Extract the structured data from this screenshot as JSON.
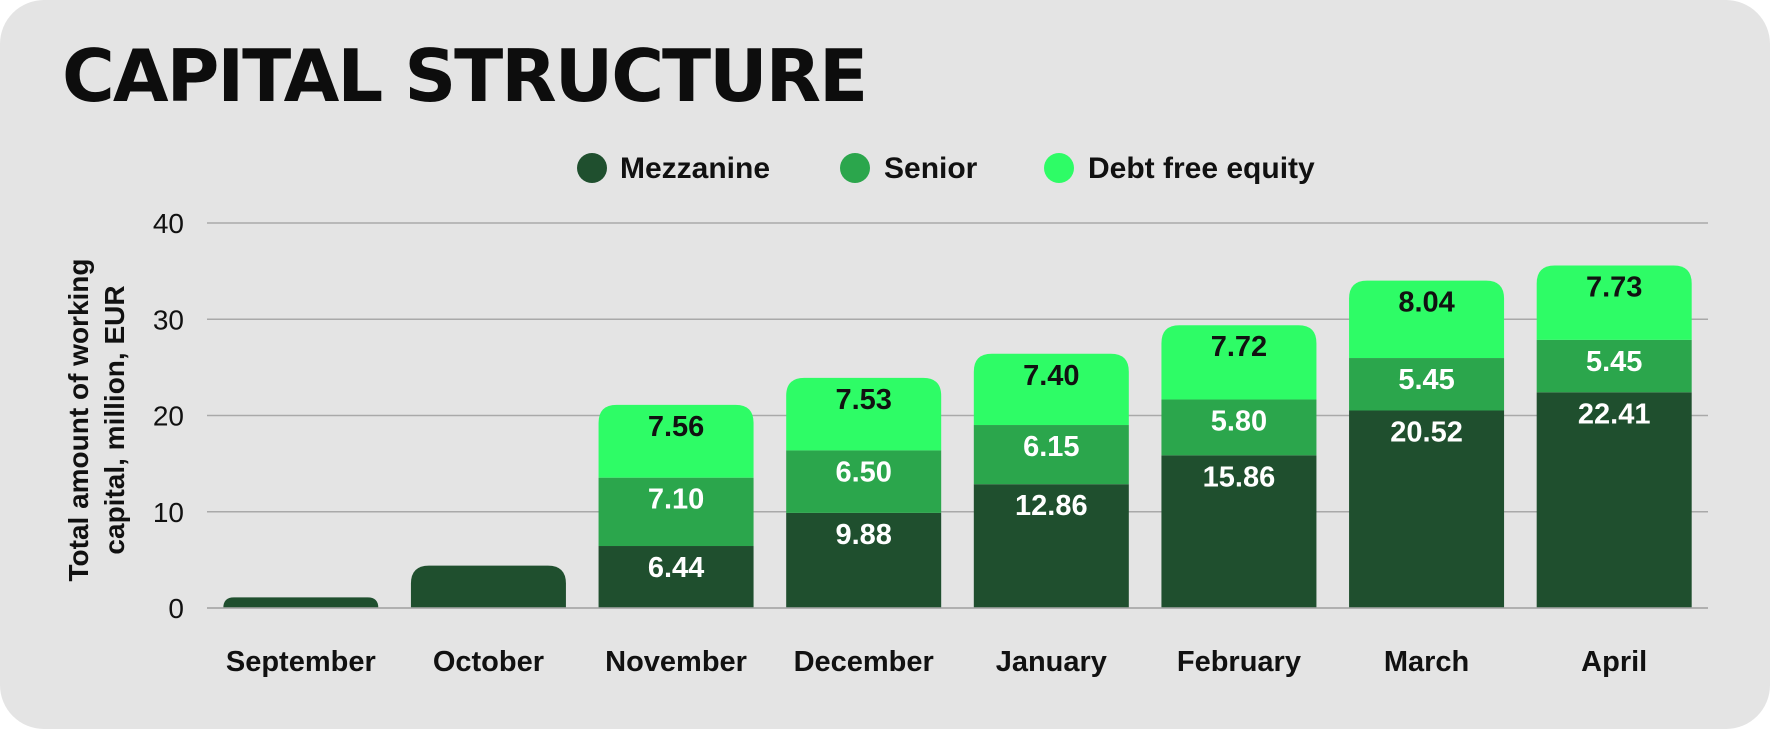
{
  "chart_data": {
    "type": "bar",
    "stacked": true,
    "title": "CAPITAL STRUCTURE",
    "ylabel_lines": [
      "Total amount of working",
      "capital, million, EUR"
    ],
    "ylabel": "Total amount of working capital, million, EUR",
    "xlabel": "",
    "ylim": [
      0,
      40
    ],
    "yticks": [
      "0",
      "10",
      "20",
      "30",
      "40"
    ],
    "grid": true,
    "legend_position": "top-center",
    "categories": [
      "September",
      "October",
      "November",
      "December",
      "January",
      "February",
      "March",
      "April"
    ],
    "series": [
      {
        "name": "Mezzanine",
        "color": "#1f4f2e",
        "label_color": "#ffffff",
        "values": [
          1.1,
          4.4,
          6.44,
          9.88,
          12.86,
          15.86,
          20.52,
          22.41
        ],
        "labels": [
          "",
          "",
          "6.44",
          "9.88",
          "12.86",
          "15.86",
          "20.52",
          "22.41"
        ]
      },
      {
        "name": "Senior",
        "color": "#2ba64c",
        "label_color": "#ffffff",
        "values": [
          0,
          0,
          7.1,
          6.5,
          6.15,
          5.8,
          5.45,
          5.45
        ],
        "labels": [
          "",
          "",
          "7.10",
          "6.50",
          "6.15",
          "5.80",
          "5.45",
          "5.45"
        ]
      },
      {
        "name": "Debt free equity",
        "color": "#2efc66",
        "label_color": "#111111",
        "values": [
          0,
          0,
          7.56,
          7.53,
          7.4,
          7.72,
          8.04,
          7.73
        ],
        "labels": [
          "",
          "",
          "7.56",
          "7.53",
          "7.40",
          "7.72",
          "8.04",
          "7.73"
        ]
      }
    ]
  }
}
